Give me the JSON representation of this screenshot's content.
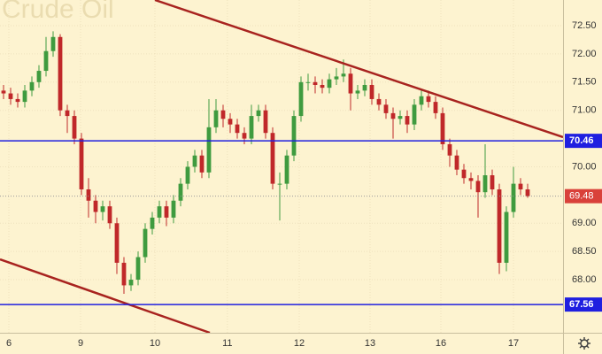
{
  "chart_data": {
    "type": "candlestick",
    "title": "Crude Oil",
    "x": [
      0,
      1,
      2,
      3,
      4,
      5,
      6,
      7,
      8,
      9,
      10,
      11,
      12,
      13,
      14,
      15,
      16,
      17,
      18,
      19,
      20,
      21,
      22,
      23,
      24,
      25,
      26,
      27,
      28,
      29,
      30,
      31,
      32,
      33,
      34,
      35,
      36,
      37,
      38,
      39,
      40,
      41,
      42,
      43,
      44,
      45,
      46,
      47,
      48,
      49,
      50,
      51,
      52,
      53,
      54,
      55,
      56,
      57,
      58,
      59,
      60,
      61,
      62,
      63,
      64,
      65,
      66,
      67,
      68,
      69,
      70,
      71,
      72,
      73,
      74
    ],
    "open": [
      71.35,
      71.3,
      71.2,
      71.15,
      71.35,
      71.5,
      71.7,
      72.05,
      72.3,
      71.0,
      70.9,
      70.5,
      69.6,
      69.4,
      69.2,
      69.3,
      69.0,
      68.3,
      67.9,
      68.0,
      68.4,
      68.9,
      69.1,
      69.3,
      69.1,
      69.4,
      69.7,
      70.0,
      70.2,
      69.9,
      70.7,
      71.0,
      70.85,
      70.75,
      70.6,
      70.5,
      70.9,
      71.0,
      70.6,
      69.7,
      69.7,
      70.2,
      70.9,
      71.5,
      71.5,
      71.45,
      71.4,
      71.55,
      71.6,
      71.65,
      71.3,
      71.35,
      71.45,
      71.2,
      71.1,
      70.95,
      70.85,
      70.9,
      70.75,
      71.1,
      71.25,
      71.15,
      70.95,
      70.4,
      70.2,
      69.95,
      69.8,
      69.75,
      69.55,
      69.85,
      69.6,
      68.3,
      69.2,
      69.7,
      69.6
    ],
    "high": [
      71.45,
      71.4,
      71.3,
      71.45,
      71.6,
      71.8,
      72.3,
      72.4,
      72.35,
      71.1,
      71.0,
      70.6,
      69.8,
      69.5,
      69.4,
      69.4,
      69.1,
      68.4,
      68.1,
      68.5,
      69.0,
      69.2,
      69.4,
      69.4,
      69.5,
      69.8,
      70.1,
      70.3,
      70.3,
      71.2,
      71.2,
      71.1,
      70.95,
      70.85,
      70.7,
      71.1,
      71.1,
      71.1,
      70.7,
      69.9,
      70.3,
      71.0,
      71.6,
      71.65,
      71.6,
      71.55,
      71.65,
      71.75,
      71.9,
      71.75,
      71.45,
      71.55,
      71.55,
      71.3,
      71.2,
      71.05,
      71.0,
      71.0,
      71.2,
      71.35,
      71.35,
      71.25,
      71.05,
      70.5,
      70.3,
      70.05,
      69.9,
      69.85,
      70.4,
      69.95,
      69.7,
      69.3,
      70.0,
      69.8,
      69.7
    ],
    "low": [
      71.2,
      71.1,
      71.05,
      71.05,
      71.25,
      71.4,
      71.6,
      71.95,
      70.9,
      70.6,
      70.4,
      69.5,
      69.1,
      69.0,
      69.05,
      68.9,
      68.1,
      67.75,
      67.8,
      67.9,
      68.3,
      68.8,
      69.0,
      68.95,
      69.0,
      69.3,
      69.6,
      69.9,
      69.8,
      69.8,
      70.6,
      70.7,
      70.6,
      70.5,
      70.4,
      70.4,
      70.8,
      70.5,
      69.6,
      69.05,
      69.6,
      70.1,
      70.8,
      71.35,
      71.3,
      71.3,
      71.3,
      71.45,
      71.5,
      71.0,
      71.2,
      71.25,
      71.1,
      71.0,
      70.85,
      70.5,
      70.75,
      70.6,
      70.65,
      71.0,
      71.05,
      70.85,
      70.3,
      70.0,
      69.85,
      69.7,
      69.6,
      69.1,
      69.45,
      69.5,
      68.1,
      68.15,
      69.1,
      69.5,
      69.45
    ],
    "close": [
      71.3,
      71.2,
      71.15,
      71.35,
      71.5,
      71.7,
      72.05,
      72.3,
      71.0,
      70.9,
      70.5,
      69.6,
      69.4,
      69.2,
      69.3,
      69.0,
      68.3,
      67.9,
      68.0,
      68.4,
      68.9,
      69.1,
      69.3,
      69.1,
      69.4,
      69.7,
      70.0,
      70.2,
      69.9,
      70.7,
      71.0,
      70.85,
      70.75,
      70.6,
      70.5,
      70.9,
      71.0,
      70.6,
      69.7,
      69.7,
      70.2,
      70.9,
      71.5,
      71.5,
      71.45,
      71.4,
      71.55,
      71.6,
      71.65,
      71.3,
      71.35,
      71.45,
      71.2,
      71.1,
      70.95,
      70.85,
      70.9,
      70.75,
      71.1,
      71.25,
      71.15,
      70.95,
      70.4,
      70.2,
      69.95,
      69.8,
      69.75,
      69.55,
      69.85,
      69.6,
      68.3,
      69.2,
      69.7,
      69.6,
      69.48
    ],
    "up_color": "#3f9b3f",
    "down_color": "#c0282a",
    "xlim": [
      -0.5,
      79
    ],
    "xticks": [
      {
        "value": 0.75,
        "label": "6"
      },
      {
        "value": 10.875,
        "label": "9"
      },
      {
        "value": 21.375,
        "label": "10"
      },
      {
        "value": 31.6,
        "label": "11"
      },
      {
        "value": 41.75,
        "label": "12"
      },
      {
        "value": 51.75,
        "label": "13"
      },
      {
        "value": 61.75,
        "label": "16"
      },
      {
        "value": 72,
        "label": "17"
      }
    ],
    "ylim": [
      67.06,
      72.955
    ],
    "yticks": [
      {
        "value": 72.5,
        "label": "72.50"
      },
      {
        "value": 72,
        "label": "72.00"
      },
      {
        "value": 71.5,
        "label": "71.50"
      },
      {
        "value": 71,
        "label": "71.00"
      },
      {
        "value": 70,
        "label": "70.00"
      },
      {
        "value": 69,
        "label": "69.00"
      },
      {
        "value": 68.5,
        "label": "68.50"
      },
      {
        "value": 68,
        "label": "68.00"
      }
    ],
    "grid": true,
    "hlines": [
      {
        "value": 70.46,
        "color": "#1f1fe0"
      },
      {
        "value": 67.56,
        "color": "#1f1fe0"
      }
    ],
    "last_price": {
      "value": 69.48,
      "color": "#d9413a"
    },
    "trendlines": [
      {
        "color": "#a8231f",
        "x": [
          21.375,
          79
        ],
        "y": [
          72.955,
          70.525
        ]
      },
      {
        "color": "#a8231f",
        "x": [
          -0.5,
          29.125
        ],
        "y": [
          68.36,
          67.06
        ]
      }
    ]
  }
}
